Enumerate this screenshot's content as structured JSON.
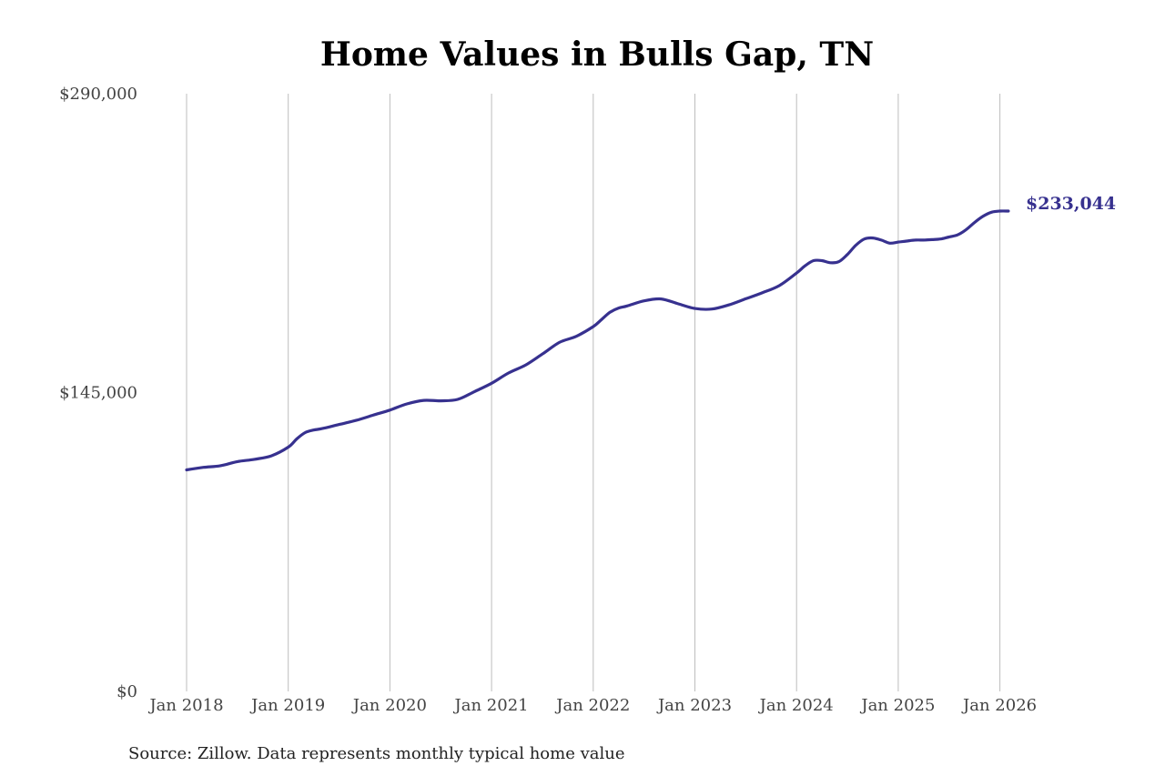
{
  "chart_data": {
    "type": "line",
    "title": "Home Values in Bulls Gap, TN",
    "xlabel": "",
    "ylabel": "",
    "source": "Source: Zillow. Data represents monthly typical home value",
    "ylim": [
      0,
      290000
    ],
    "y_ticks": [
      {
        "value": 0,
        "label": "$0"
      },
      {
        "value": 145000,
        "label": "$145,000"
      },
      {
        "value": 290000,
        "label": "$290,000"
      }
    ],
    "x_ticks": [
      {
        "value": "2018-01",
        "label": "Jan 2018"
      },
      {
        "value": "2019-01",
        "label": "Jan 2019"
      },
      {
        "value": "2020-01",
        "label": "Jan 2020"
      },
      {
        "value": "2021-01",
        "label": "Jan 2021"
      },
      {
        "value": "2022-01",
        "label": "Jan 2022"
      },
      {
        "value": "2023-01",
        "label": "Jan 2023"
      },
      {
        "value": "2024-01",
        "label": "Jan 2024"
      },
      {
        "value": "2025-01",
        "label": "Jan 2025"
      },
      {
        "value": "2026-01",
        "label": "Jan 2026"
      }
    ],
    "grid": {
      "x": true,
      "y": false
    },
    "legend": "none",
    "end_label": "$233,044",
    "colors": {
      "line": "#37318f",
      "end_label": "#37318f",
      "grid": "#bdbdbd"
    },
    "series": [
      {
        "x": [
          "2018-01",
          "2018-03",
          "2018-05",
          "2018-07",
          "2018-09",
          "2018-11",
          "2019-01",
          "2019-02",
          "2019-03",
          "2019-04",
          "2019-05",
          "2019-07",
          "2019-09",
          "2019-11",
          "2020-01",
          "2020-03",
          "2020-05",
          "2020-07",
          "2020-09",
          "2020-11",
          "2021-01",
          "2021-03",
          "2021-05",
          "2021-07",
          "2021-09",
          "2021-11",
          "2022-01",
          "2022-02",
          "2022-03",
          "2022-04",
          "2022-05",
          "2022-07",
          "2022-09",
          "2022-11",
          "2023-01",
          "2023-03",
          "2023-05",
          "2023-07",
          "2023-09",
          "2023-11",
          "2024-01",
          "2024-02",
          "2024-03",
          "2024-04",
          "2024-05",
          "2024-06",
          "2024-07",
          "2024-08",
          "2024-09",
          "2024-10",
          "2024-11",
          "2024-12",
          "2025-01",
          "2025-02",
          "2025-03",
          "2025-04",
          "2025-05",
          "2025-06",
          "2025-07",
          "2025-08",
          "2025-09",
          "2025-10",
          "2025-11",
          "2025-12",
          "2026-01",
          "2026-02"
        ],
        "values": [
          107500,
          108700,
          109500,
          111500,
          112600,
          114300,
          118500,
          122500,
          125600,
          126800,
          127500,
          129500,
          131500,
          134000,
          136500,
          139500,
          141200,
          141000,
          141700,
          145500,
          149500,
          154500,
          158300,
          163700,
          169300,
          172300,
          177000,
          180500,
          184000,
          186000,
          187000,
          189500,
          190400,
          188100,
          185800,
          185500,
          187500,
          190500,
          193500,
          197000,
          203000,
          206500,
          209000,
          209000,
          208000,
          208500,
          212000,
          216500,
          219500,
          220000,
          219000,
          217500,
          218000,
          218500,
          219000,
          219000,
          219200,
          219500,
          220500,
          221500,
          224000,
          227500,
          230500,
          232500,
          233044,
          233044
        ]
      }
    ]
  }
}
